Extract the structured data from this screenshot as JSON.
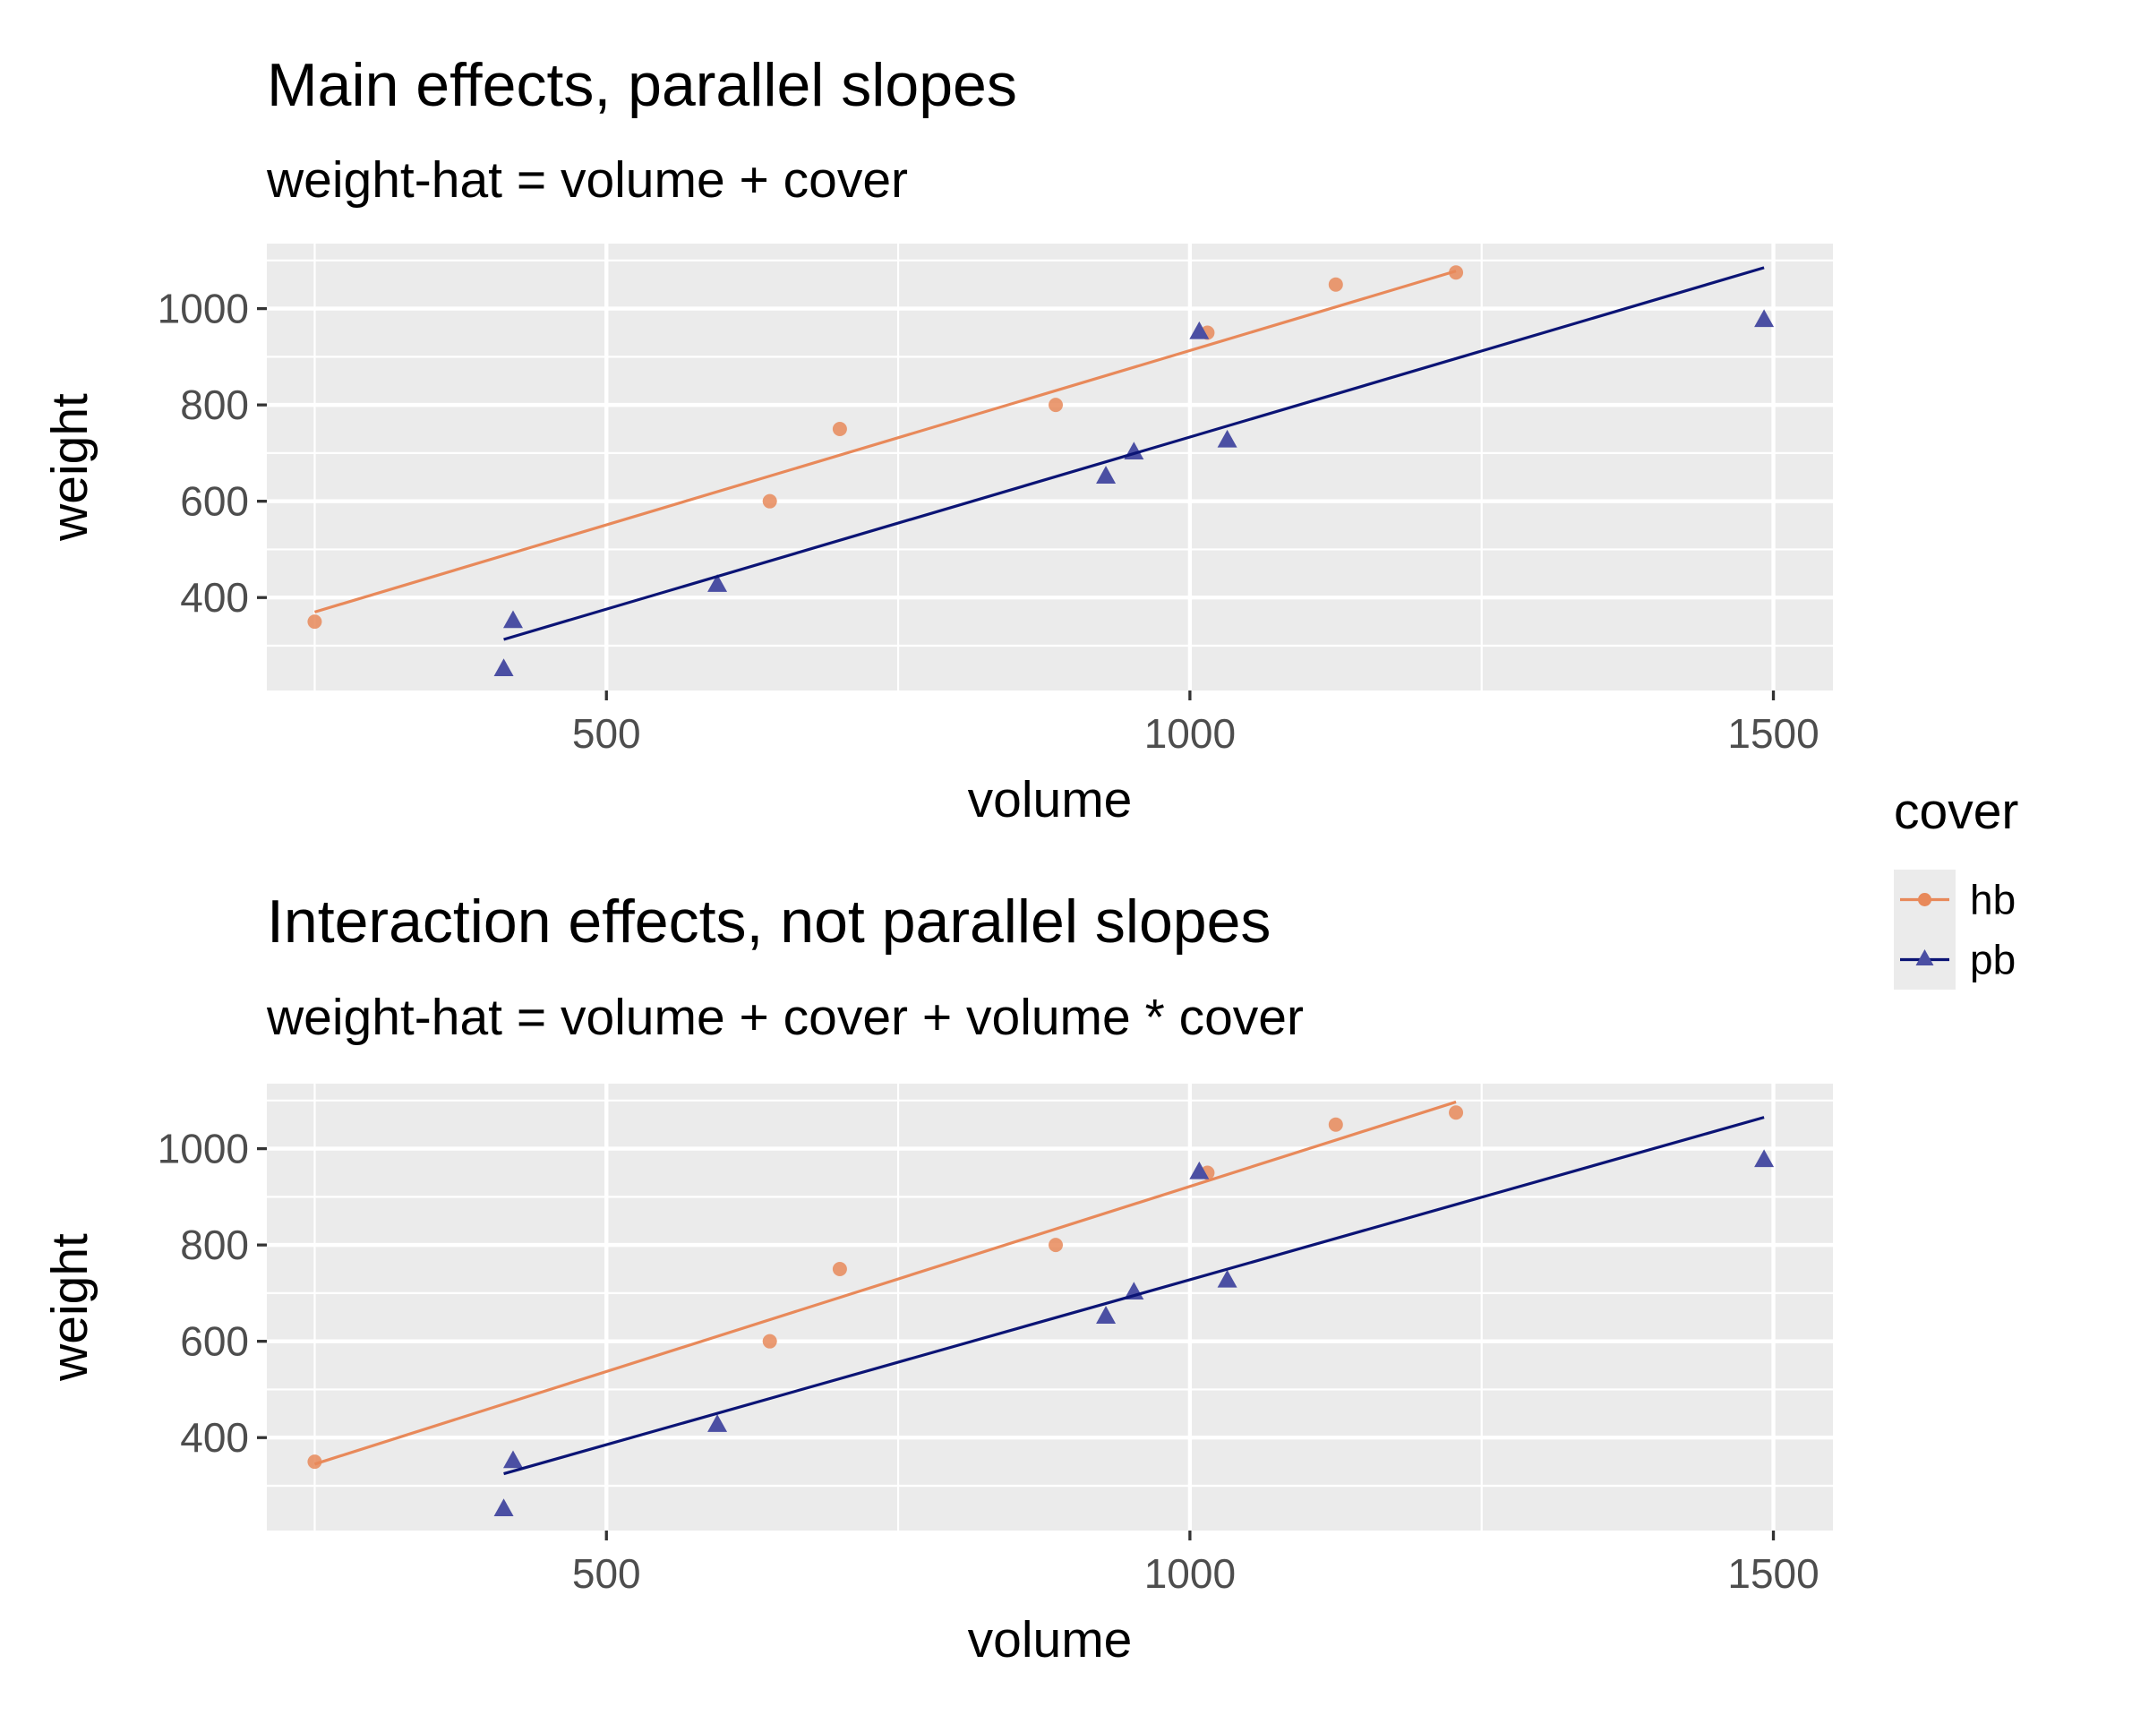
{
  "legend": {
    "title": "cover",
    "entries": [
      {
        "key": "hb",
        "label": "hb"
      },
      {
        "key": "pb",
        "label": "pb"
      }
    ]
  },
  "colors": {
    "hb": "#E8895A",
    "pb": "#0B1475",
    "pb_point": "#4B4FA3",
    "panel_bg": "#EBEBEB",
    "grid": "#FFFFFF",
    "tick_text": "#4D4D4D",
    "text": "#000000"
  },
  "chart_data": [
    {
      "type": "scatter",
      "title": "Main effects, parallel slopes",
      "subtitle": "weight-hat = volume + cover",
      "xlabel": "volume",
      "ylabel": "weight",
      "xlim": [
        209,
        1551
      ],
      "ylim": [
        207,
        1135
      ],
      "xticks": [
        500,
        1000,
        1500
      ],
      "yticks": [
        400,
        600,
        800,
        1000
      ],
      "grid": true,
      "legend_position": "right",
      "series": [
        {
          "name": "hb",
          "marker": "circle",
          "points": [
            [
              250,
              350
            ],
            [
              640,
              600
            ],
            [
              700,
              750
            ],
            [
              885,
              800
            ],
            [
              1015,
              950
            ],
            [
              1125,
              1050
            ],
            [
              1228,
              1075
            ]
          ],
          "fit": [
            [
              250,
              370
            ],
            [
              1228,
              1078
            ]
          ]
        },
        {
          "name": "pb",
          "marker": "triangle",
          "points": [
            [
              412,
              250
            ],
            [
              420,
              350
            ],
            [
              595,
              425
            ],
            [
              928,
              650
            ],
            [
              952,
              700
            ],
            [
              1008,
              950
            ],
            [
              1032,
              725
            ],
            [
              1492,
              975
            ]
          ],
          "fit": [
            [
              412,
              313
            ],
            [
              1492,
              1085
            ]
          ]
        }
      ]
    },
    {
      "type": "scatter",
      "title": "Interaction effects, not parallel slopes",
      "subtitle": "weight-hat = volume + cover + volume * cover",
      "xlabel": "volume",
      "ylabel": "weight",
      "xlim": [
        209,
        1551
      ],
      "ylim": [
        207,
        1135
      ],
      "xticks": [
        500,
        1000,
        1500
      ],
      "yticks": [
        400,
        600,
        800,
        1000
      ],
      "grid": true,
      "legend_position": "right",
      "series": [
        {
          "name": "hb",
          "marker": "circle",
          "points": [
            [
              250,
              350
            ],
            [
              640,
              600
            ],
            [
              700,
              750
            ],
            [
              885,
              800
            ],
            [
              1015,
              950
            ],
            [
              1125,
              1050
            ],
            [
              1228,
              1075
            ]
          ],
          "fit": [
            [
              250,
              345
            ],
            [
              1228,
              1097
            ]
          ]
        },
        {
          "name": "pb",
          "marker": "triangle",
          "points": [
            [
              412,
              250
            ],
            [
              420,
              350
            ],
            [
              595,
              425
            ],
            [
              928,
              650
            ],
            [
              952,
              700
            ],
            [
              1008,
              950
            ],
            [
              1032,
              725
            ],
            [
              1492,
              975
            ]
          ],
          "fit": [
            [
              412,
              325
            ],
            [
              1492,
              1065
            ]
          ]
        }
      ]
    }
  ]
}
